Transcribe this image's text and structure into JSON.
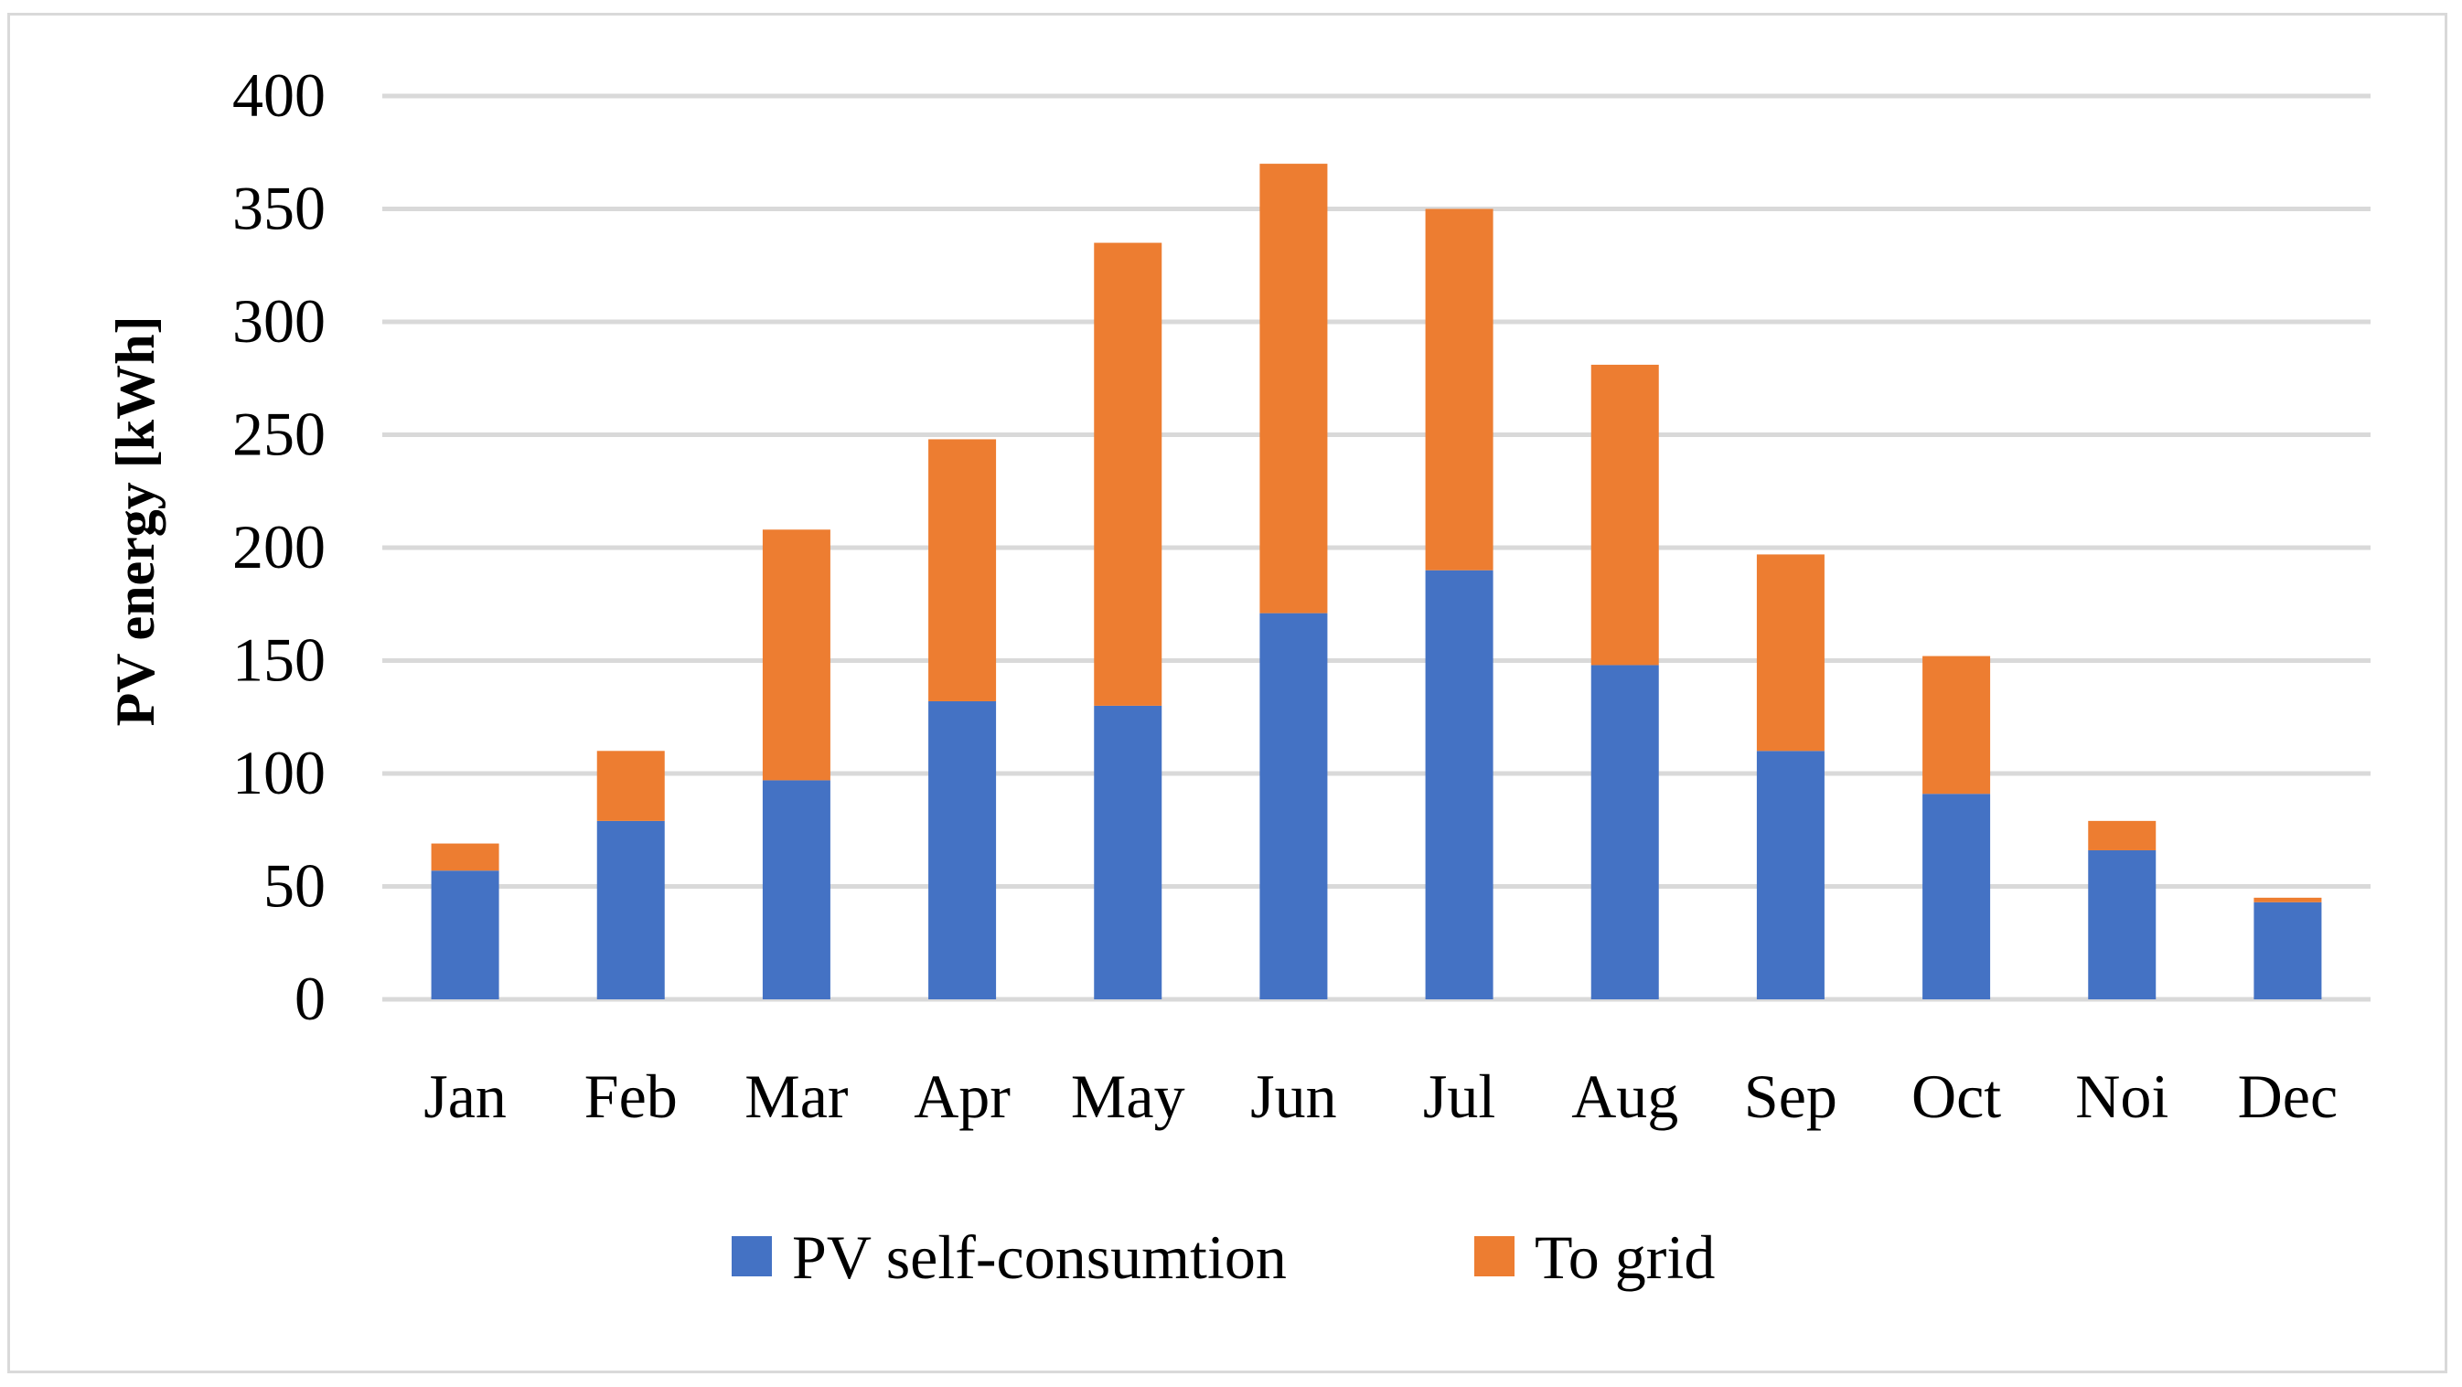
{
  "chart_data": {
    "type": "bar",
    "stacked": true,
    "title": "",
    "xlabel": "",
    "ylabel": "PV energy [kWh]",
    "ylim": [
      0,
      400
    ],
    "yticks": [
      0,
      50,
      100,
      150,
      200,
      250,
      300,
      350,
      400
    ],
    "grid": true,
    "legend": "bottom",
    "categories": [
      "Jan",
      "Feb",
      "Mar",
      "Apr",
      "May",
      "Jun",
      "Jul",
      "Aug",
      "Sep",
      "Oct",
      "Noi",
      "Dec"
    ],
    "series": [
      {
        "name": "PV self-consumtion",
        "color": "#4472c4",
        "values": [
          57,
          79,
          97,
          132,
          130,
          171,
          190,
          148,
          110,
          91,
          66,
          43
        ]
      },
      {
        "name": "To grid",
        "color": "#ed7d31",
        "values": [
          12,
          31,
          111,
          116,
          205,
          199,
          160,
          133,
          87,
          61,
          13,
          2
        ]
      }
    ],
    "gridColor": "#d9d9d9"
  }
}
